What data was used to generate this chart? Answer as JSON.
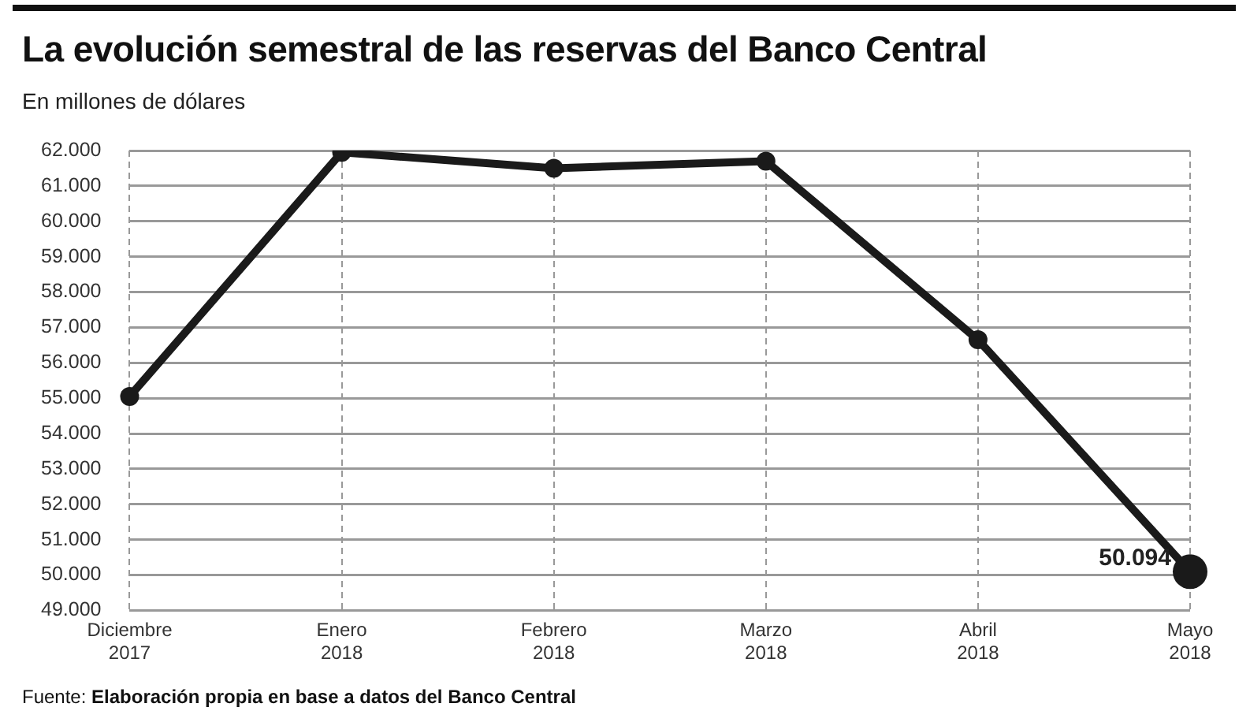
{
  "chart_data": {
    "type": "line",
    "title": "La evolución semestral de las reservas del Banco Central",
    "subtitle": "En millones de dólares",
    "annotations": [
      "Fuente: Elaboración propia en base a datos del Banco Central"
    ],
    "categories": [
      "Diciembre 2017",
      "Enero 2018",
      "Febrero 2018",
      "Marzo 2018",
      "Abril 2018",
      "Mayo 2018"
    ],
    "series": [
      {
        "color": "#1a1a1a",
        "values": [
          55050,
          61950,
          61500,
          61700,
          56650,
          50094
        ],
        "value_labels": [
          null,
          null,
          null,
          null,
          null,
          "50.094"
        ]
      }
    ],
    "ylim": [
      49000,
      62000
    ],
    "yticks": [
      {
        "value": 49000,
        "label": "49.000"
      },
      {
        "value": 50000,
        "label": "50.000"
      },
      {
        "value": 51000,
        "label": "51.000"
      },
      {
        "value": 52000,
        "label": "52.000"
      },
      {
        "value": 53000,
        "label": "53.000"
      },
      {
        "value": 54000,
        "label": "54.000"
      },
      {
        "value": 55000,
        "label": "55.000"
      },
      {
        "value": 56000,
        "label": "56.000"
      },
      {
        "value": 57000,
        "label": "57.000"
      },
      {
        "value": 58000,
        "label": "58.000"
      },
      {
        "value": 59000,
        "label": "59.000"
      },
      {
        "value": 60000,
        "label": "60.000"
      },
      {
        "value": 61000,
        "label": "61.000"
      },
      {
        "value": 62000,
        "label": "62.000"
      }
    ],
    "grid": true,
    "marker": "circle",
    "line_style": "solid",
    "legend": false
  }
}
